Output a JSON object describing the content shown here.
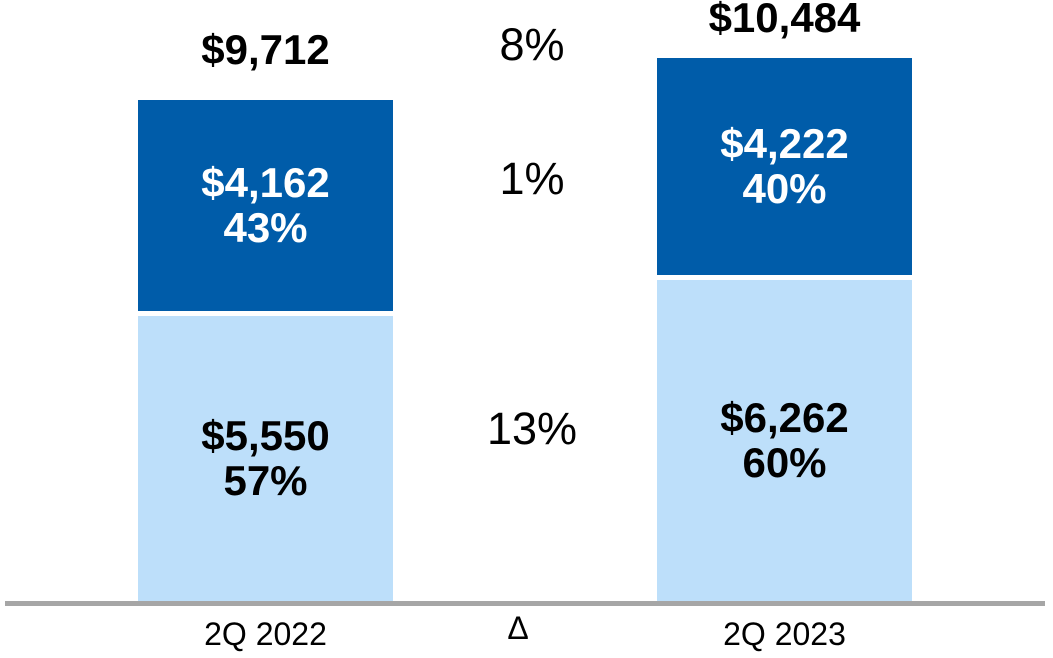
{
  "chart_data": {
    "type": "bar",
    "stacked": true,
    "orientation": "vertical",
    "categories": [
      "2Q 2022",
      "2Q 2023"
    ],
    "series": [
      {
        "name": "light-blue-segment",
        "values": [
          5550,
          6262
        ],
        "percent_of_total": [
          "57%",
          "60%"
        ],
        "color": "#BDDFFA"
      },
      {
        "name": "dark-blue-segment",
        "values": [
          4162,
          4222
        ],
        "percent_of_total": [
          "43%",
          "40%"
        ],
        "color": "#005CA9"
      }
    ],
    "totals": [
      9712,
      10484
    ],
    "total_labels": [
      "$9,712",
      "$10,484"
    ],
    "delta_column": {
      "symbol": "Δ",
      "total_change": "8%",
      "dark_segment_change": "1%",
      "light_segment_change": "13%"
    },
    "title": "",
    "xlabel": "",
    "ylabel": "",
    "ylim": [
      0,
      10484
    ],
    "grid": false,
    "legend": false,
    "value_labels_inside_bars": true
  },
  "bars": [
    {
      "category": "2Q 2022",
      "total_label": "$9,712",
      "dark": {
        "value": "$4,162",
        "pct": "43%"
      },
      "light": {
        "value": "$5,550",
        "pct": "57%"
      }
    },
    {
      "category": "2Q 2023",
      "total_label": "$10,484",
      "dark": {
        "value": "$4,222",
        "pct": "40%"
      },
      "light": {
        "value": "$6,262",
        "pct": "60%"
      }
    }
  ],
  "delta": {
    "symbol": "Δ",
    "total": "8%",
    "dark": "1%",
    "light": "13%"
  },
  "colors": {
    "dark_blue": "#005CA9",
    "light_blue": "#BDDFFA",
    "axis_gray": "#A6A6A6",
    "text_on_dark": "#FFFFFF",
    "text_on_light": "#000000"
  }
}
